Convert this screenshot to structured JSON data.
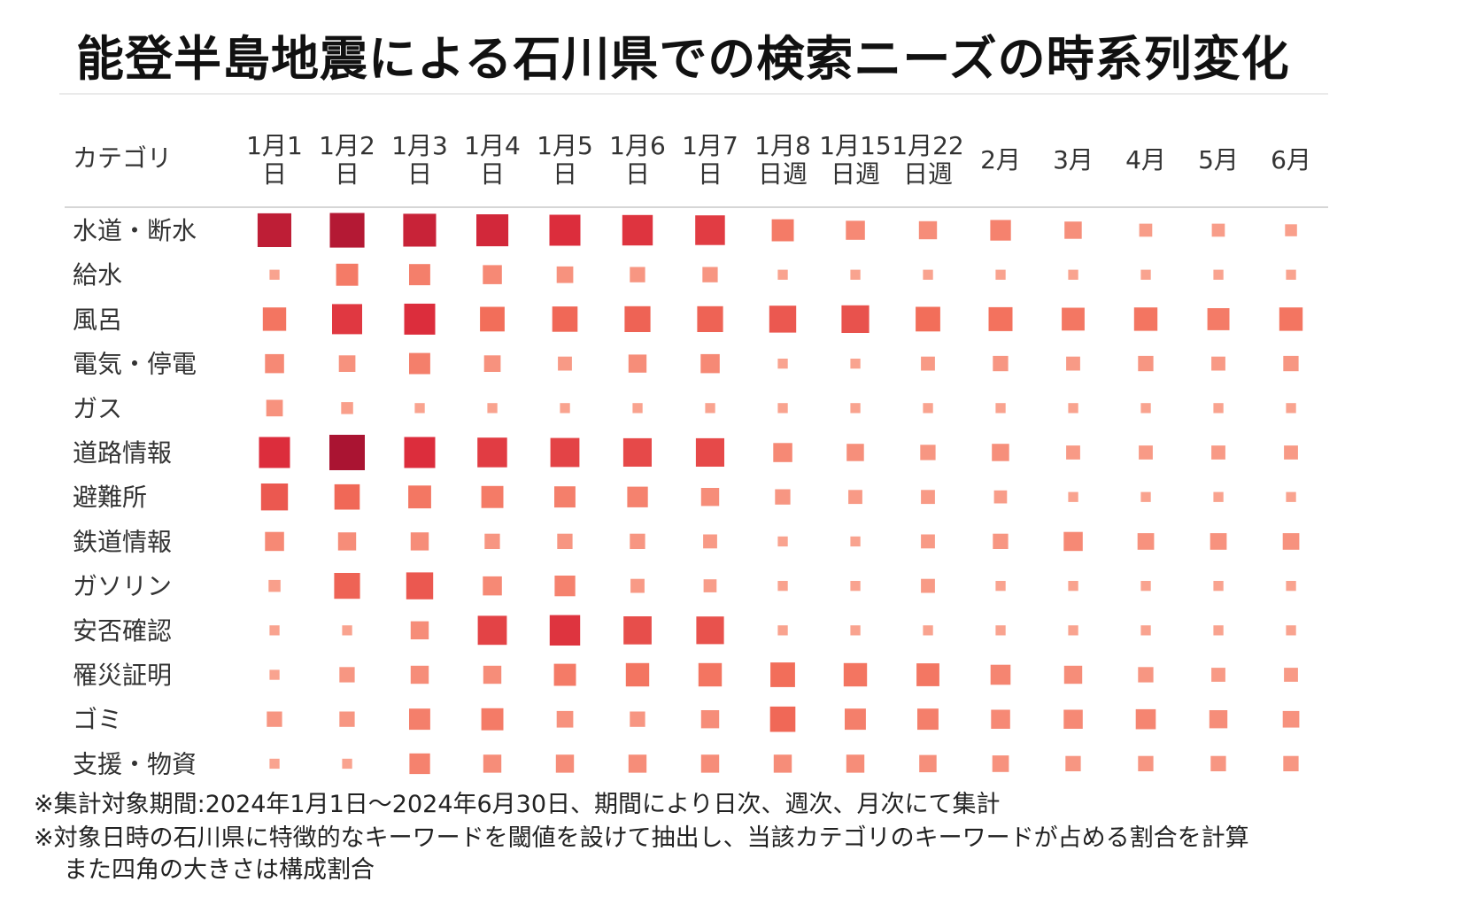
{
  "chart_data": {
    "type": "heatmap",
    "encoding": "square size = category share of searches; darker/larger = higher share",
    "title": "能登半島地震による石川県での検索ニーズの時系列変化",
    "row_header": "カテゴリ",
    "columns": [
      [
        "1月1",
        "日"
      ],
      [
        "1月2",
        "日"
      ],
      [
        "1月3",
        "日"
      ],
      [
        "1月4",
        "日"
      ],
      [
        "1月5",
        "日"
      ],
      [
        "1月6",
        "日"
      ],
      [
        "1月7",
        "日"
      ],
      [
        "1月8",
        "日週"
      ],
      [
        "1月15",
        "日週"
      ],
      [
        "1月22",
        "日週"
      ],
      [
        "2月"
      ],
      [
        "3月"
      ],
      [
        "4月"
      ],
      [
        "5月"
      ],
      [
        "6月"
      ]
    ],
    "rows": [
      {
        "category": "水道・断水",
        "values": [
          0.9,
          0.95,
          0.85,
          0.8,
          0.75,
          0.72,
          0.68,
          0.35,
          0.25,
          0.22,
          0.3,
          0.2,
          0.1,
          0.1,
          0.08
        ]
      },
      {
        "category": "給水",
        "values": [
          0.05,
          0.35,
          0.32,
          0.25,
          0.18,
          0.15,
          0.15,
          0.05,
          0.05,
          0.05,
          0.05,
          0.05,
          0.05,
          0.05,
          0.05
        ]
      },
      {
        "category": "風呂",
        "values": [
          0.4,
          0.7,
          0.75,
          0.45,
          0.48,
          0.5,
          0.5,
          0.55,
          0.58,
          0.45,
          0.42,
          0.38,
          0.4,
          0.35,
          0.4
        ]
      },
      {
        "category": "電気・停電",
        "values": [
          0.25,
          0.18,
          0.32,
          0.18,
          0.12,
          0.22,
          0.25,
          0.05,
          0.05,
          0.12,
          0.15,
          0.12,
          0.15,
          0.12,
          0.15
        ]
      },
      {
        "category": "ガス",
        "values": [
          0.18,
          0.08,
          0.05,
          0.05,
          0.05,
          0.05,
          0.05,
          0.05,
          0.05,
          0.05,
          0.05,
          0.05,
          0.05,
          0.05,
          0.05
        ]
      },
      {
        "category": "道路情報",
        "values": [
          0.75,
          1.0,
          0.75,
          0.68,
          0.65,
          0.62,
          0.62,
          0.25,
          0.2,
          0.15,
          0.2,
          0.12,
          0.12,
          0.12,
          0.12
        ]
      },
      {
        "category": "避難所",
        "values": [
          0.55,
          0.48,
          0.38,
          0.35,
          0.32,
          0.3,
          0.22,
          0.15,
          0.12,
          0.12,
          0.1,
          0.05,
          0.05,
          0.05,
          0.05
        ]
      },
      {
        "category": "鉄道情報",
        "values": [
          0.25,
          0.22,
          0.22,
          0.15,
          0.15,
          0.15,
          0.12,
          0.05,
          0.05,
          0.12,
          0.15,
          0.25,
          0.18,
          0.18,
          0.18
        ]
      },
      {
        "category": "ガソリン",
        "values": [
          0.08,
          0.5,
          0.55,
          0.25,
          0.3,
          0.12,
          0.1,
          0.05,
          0.05,
          0.12,
          0.05,
          0.05,
          0.05,
          0.05,
          0.05
        ]
      },
      {
        "category": "安否確認",
        "values": [
          0.05,
          0.05,
          0.22,
          0.65,
          0.72,
          0.6,
          0.58,
          0.05,
          0.05,
          0.05,
          0.05,
          0.05,
          0.05,
          0.05,
          0.05
        ]
      },
      {
        "category": "罹災証明",
        "values": [
          0.05,
          0.15,
          0.22,
          0.22,
          0.35,
          0.4,
          0.4,
          0.45,
          0.4,
          0.38,
          0.28,
          0.22,
          0.15,
          0.12,
          0.12
        ]
      },
      {
        "category": "ゴミ",
        "values": [
          0.15,
          0.15,
          0.32,
          0.35,
          0.18,
          0.15,
          0.22,
          0.48,
          0.32,
          0.32,
          0.25,
          0.25,
          0.28,
          0.22,
          0.18
        ]
      },
      {
        "category": "支援・物資",
        "values": [
          0.05,
          0.05,
          0.3,
          0.22,
          0.22,
          0.22,
          0.22,
          0.22,
          0.22,
          0.2,
          0.18,
          0.15,
          0.15,
          0.15,
          0.15
        ]
      }
    ]
  },
  "notes": [
    "※集計対象期間:2024年1月1日～2024年6月30日、期間により日次、週次、月次にて集計",
    "※対象日時の石川県に特徴的なキーワードを閾値を設けて抽出し、当該カテゴリのキーワードが占める割合を計算",
    "また四角の大きさは構成割合"
  ]
}
